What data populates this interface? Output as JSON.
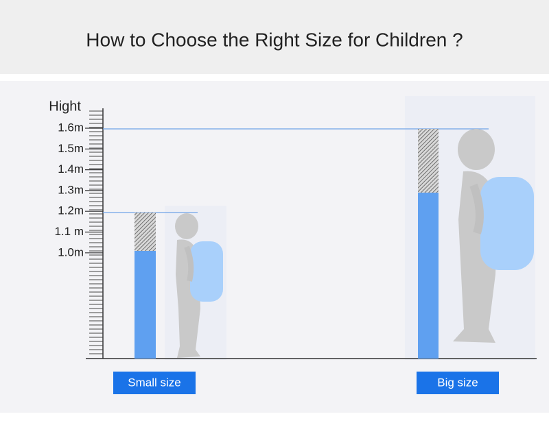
{
  "header": {
    "title": "How to Choose the Right Size for Children ?"
  },
  "ruler": {
    "label": "Hight",
    "ticks": [
      "1.6m",
      "1.5m",
      "1.4m",
      "1.3m",
      "1.2m",
      "1.1 m",
      "1.0m"
    ]
  },
  "sizes": [
    {
      "label": "Small size"
    },
    {
      "label": "Big size"
    }
  ]
}
